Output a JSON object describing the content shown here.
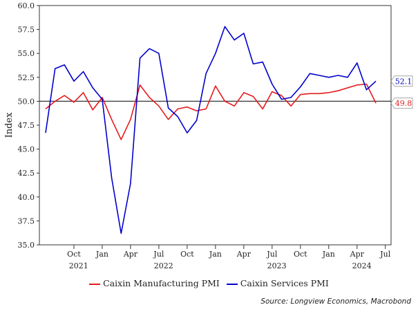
{
  "chart_data": {
    "type": "line",
    "ylabel": "Index",
    "ylim": [
      35.0,
      60.0
    ],
    "yticks": [
      "35.0",
      "37.5",
      "40.0",
      "42.5",
      "45.0",
      "47.5",
      "50.0",
      "52.5",
      "55.0",
      "57.5",
      "60.0"
    ],
    "reference_line": 50.0,
    "month_ticks": [
      {
        "label": "Oct",
        "index": 3
      },
      {
        "label": "Jan",
        "index": 6
      },
      {
        "label": "Apr",
        "index": 9
      },
      {
        "label": "Jul",
        "index": 12
      },
      {
        "label": "Oct",
        "index": 15
      },
      {
        "label": "Jan",
        "index": 18
      },
      {
        "label": "Apr",
        "index": 21
      },
      {
        "label": "Jul",
        "index": 24
      },
      {
        "label": "Oct",
        "index": 27
      },
      {
        "label": "Jan",
        "index": 30
      },
      {
        "label": "Apr",
        "index": 33
      },
      {
        "label": "Jul",
        "index": 36
      }
    ],
    "year_labels": [
      {
        "label": "2021",
        "index": 3.5
      },
      {
        "label": "2022",
        "index": 12.5
      },
      {
        "label": "2023",
        "index": 24.5
      },
      {
        "label": "2024",
        "index": 33.5
      }
    ],
    "first_month": "2021-07",
    "series": [
      {
        "name": "Caixin Manufacturing PMI",
        "color": "#e41a1c",
        "end_label": "49.8",
        "values": [
          49.2,
          50.0,
          50.6,
          49.9,
          50.9,
          49.1,
          50.4,
          48.1,
          46.0,
          48.1,
          51.7,
          50.4,
          49.5,
          48.1,
          49.2,
          49.4,
          49.0,
          49.2,
          51.6,
          50.0,
          49.5,
          50.9,
          50.5,
          49.2,
          51.0,
          50.6,
          49.5,
          50.7,
          50.8,
          50.8,
          50.9,
          51.1,
          51.4,
          51.7,
          51.8,
          49.8
        ]
      },
      {
        "name": "Caixin Services PMI",
        "color": "#0000cc",
        "end_label": "52.1",
        "values": [
          46.7,
          53.4,
          53.8,
          52.1,
          53.1,
          51.4,
          50.2,
          42.0,
          36.2,
          41.4,
          54.5,
          55.5,
          55.0,
          49.3,
          48.4,
          46.7,
          48.0,
          52.9,
          55.0,
          57.8,
          56.4,
          57.1,
          53.9,
          54.1,
          51.8,
          50.2,
          50.4,
          51.5,
          52.9,
          52.7,
          52.5,
          52.7,
          52.5,
          54.0,
          51.2,
          52.1
        ]
      }
    ]
  },
  "legend": {
    "manufacturing": "Caixin Manufacturing PMI",
    "services": "Caixin Services PMI"
  },
  "source": "Source: Longview Economics, Macrobond"
}
